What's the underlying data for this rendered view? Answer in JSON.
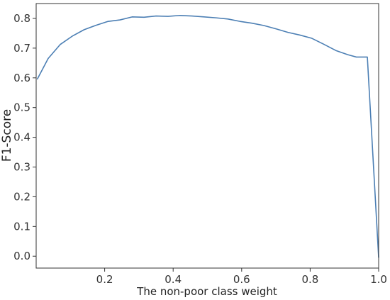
{
  "chart_data": {
    "type": "line",
    "title": "",
    "xlabel": "The non-poor class weight",
    "ylabel": "F1-Score",
    "xlim": [
      0.0,
      1.0
    ],
    "ylim": [
      -0.04,
      0.85
    ],
    "xticks": [
      0.2,
      0.4,
      0.6,
      0.8,
      1.0
    ],
    "xtick_labels": [
      "0.2",
      "0.4",
      "0.6",
      "0.8",
      "1.0"
    ],
    "yticks": [
      0.0,
      0.1,
      0.2,
      0.3,
      0.4,
      0.5,
      0.6,
      0.7,
      0.8
    ],
    "ytick_labels": [
      "0.0",
      "0.1",
      "0.2",
      "0.3",
      "0.4",
      "0.5",
      "0.6",
      "0.7",
      "0.8"
    ],
    "grid": false,
    "legend": false,
    "series": [
      {
        "color": "#4c7fb4",
        "x": [
          0.003,
          0.035,
          0.07,
          0.105,
          0.14,
          0.175,
          0.21,
          0.245,
          0.28,
          0.315,
          0.35,
          0.385,
          0.42,
          0.455,
          0.49,
          0.525,
          0.56,
          0.595,
          0.63,
          0.665,
          0.7,
          0.735,
          0.77,
          0.805,
          0.84,
          0.875,
          0.91,
          0.935,
          0.967,
          1.0
        ],
        "y": [
          0.595,
          0.665,
          0.712,
          0.74,
          0.762,
          0.777,
          0.79,
          0.795,
          0.805,
          0.804,
          0.808,
          0.807,
          0.81,
          0.808,
          0.805,
          0.802,
          0.798,
          0.79,
          0.784,
          0.776,
          0.765,
          0.753,
          0.744,
          0.733,
          0.713,
          0.692,
          0.678,
          0.67,
          0.67,
          -0.005
        ]
      }
    ]
  }
}
